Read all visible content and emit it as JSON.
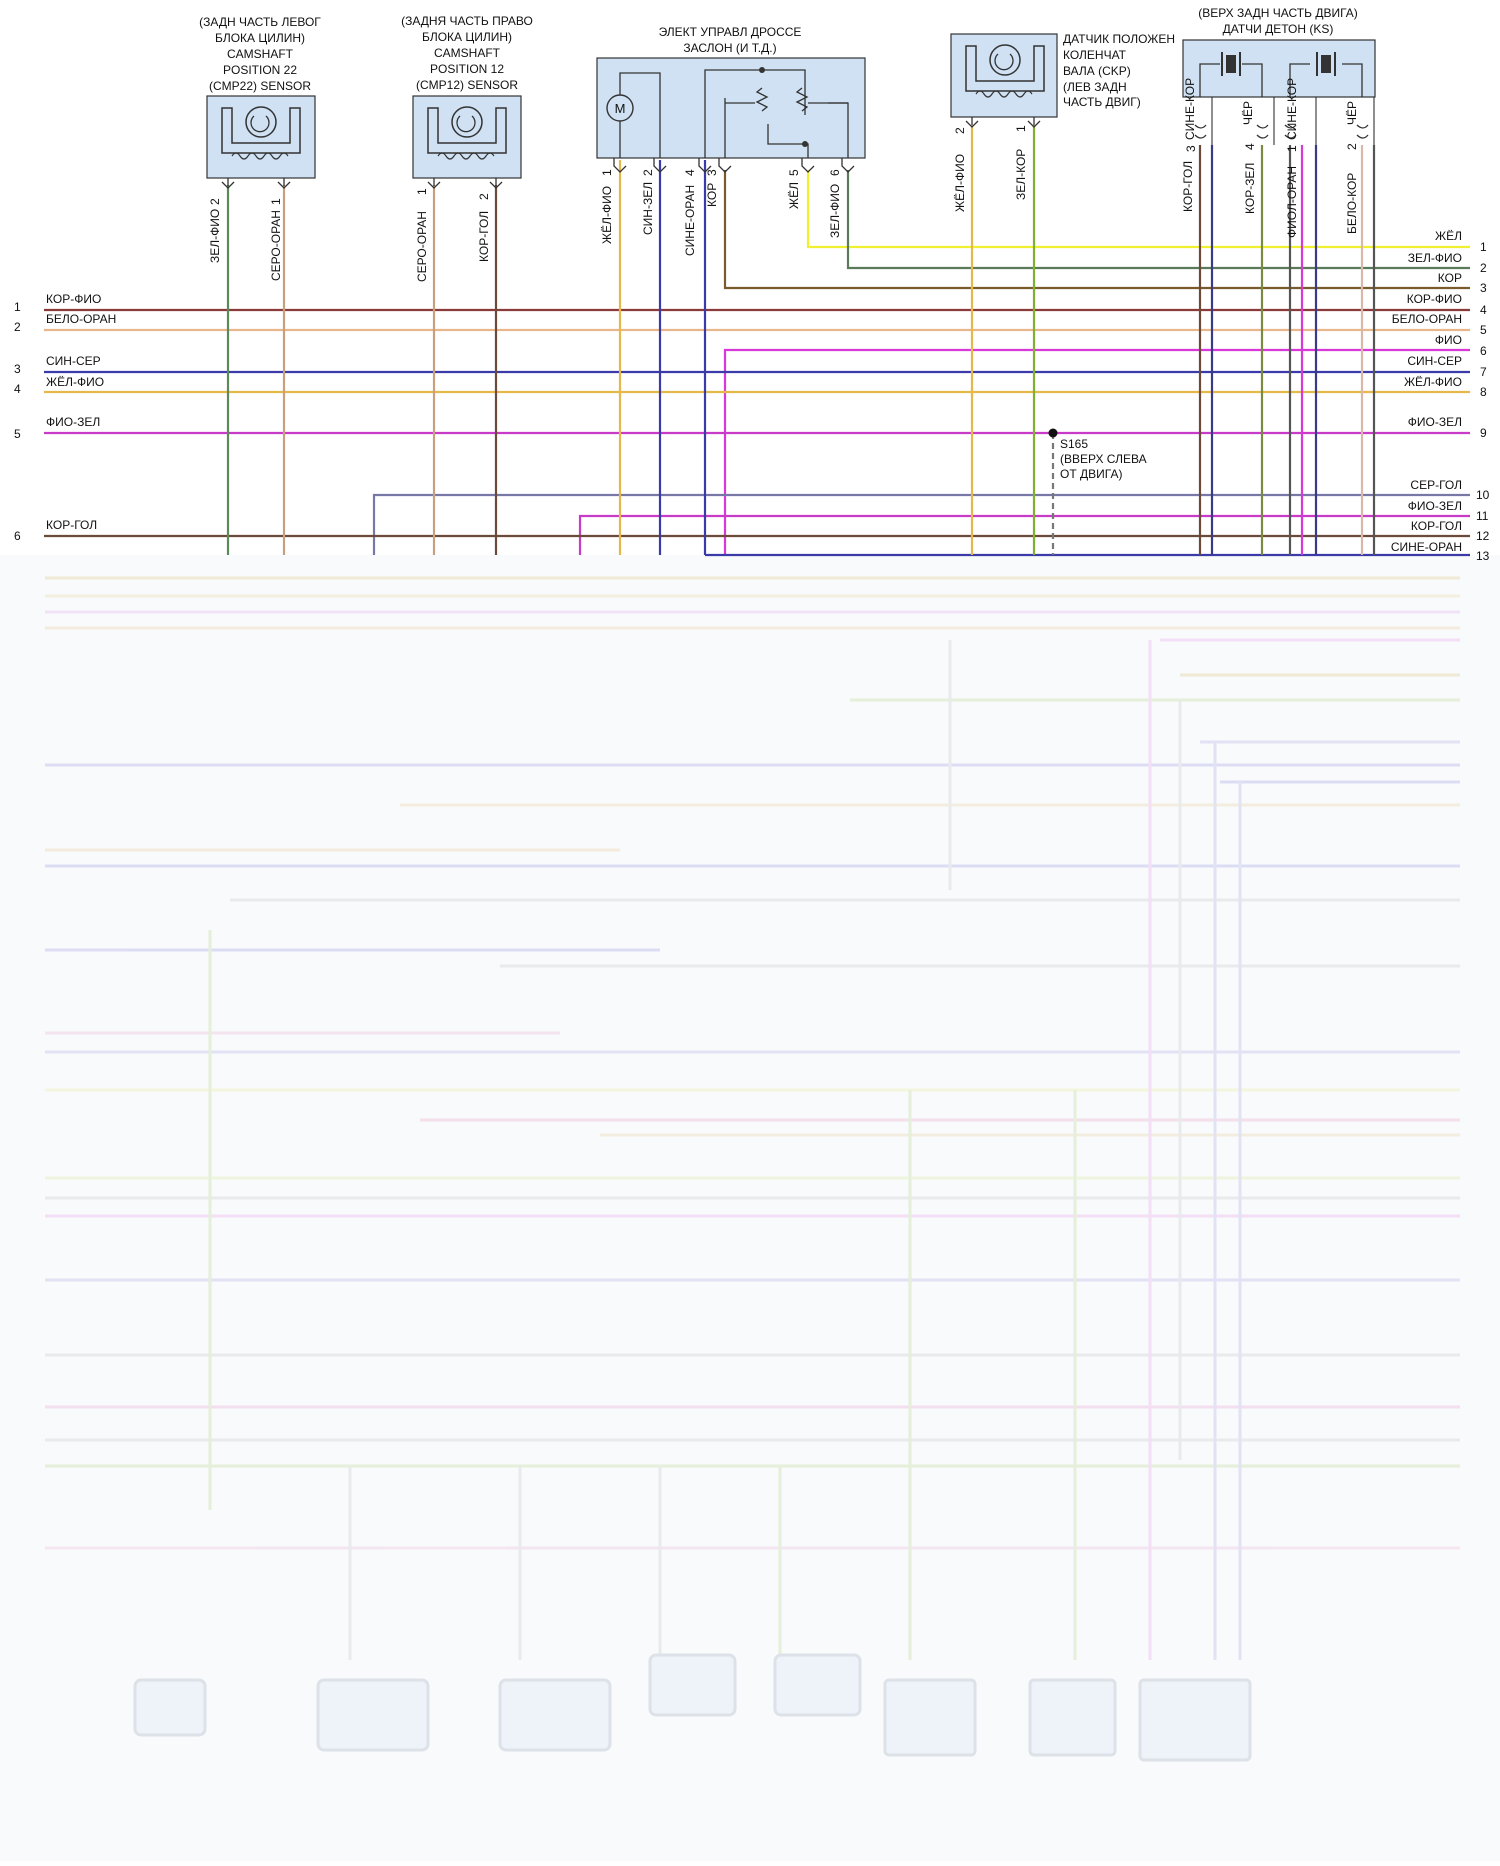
{
  "components": {
    "cmp22": {
      "lines": [
        "(ЗАДН ЧАСТЬ ЛЕВОГ",
        "БЛОКА ЦИЛИН)",
        "CAMSHAFT",
        "POSITION 22",
        "(CMP22) SENSOR"
      ],
      "pins": [
        "2",
        "1"
      ],
      "wires": [
        "ЗЕЛ-ФИО",
        "СЕРО-ОРАН"
      ]
    },
    "cmp12": {
      "lines": [
        "(ЗАДНЯ ЧАСТЬ ПРАВО",
        "БЛОКА ЦИЛИН)",
        "CAMSHAFT",
        "POSITION 12",
        "(CMP12) SENSOR"
      ],
      "pins": [
        "1",
        "2"
      ],
      "wires": [
        "СЕРО-ОРАН",
        "КОР-ГОЛ"
      ]
    },
    "throttle": {
      "lines": [
        "ЭЛЕКТ УПРАВЛ ДРОССЕ",
        "ЗАСЛОН (И Т.Д.)"
      ],
      "pins": [
        "1",
        "2",
        "4",
        "3",
        "5",
        "6"
      ],
      "wires": [
        "ЖЁЛ-ФИО",
        "СИН-ЗЕЛ",
        "СИНЕ-ОРАН",
        "КОР",
        "ЖЁЛ",
        "ЗЕЛ-ФИО"
      ],
      "motor_symbol": "M"
    },
    "ckp": {
      "lines": [
        "ДАТЧИК ПОЛОЖЕН",
        "КОЛЕНЧАТ",
        "ВАЛА (CKP)",
        "(ЛЕВ ЗАДН",
        "ЧАСТЬ ДВИГ)"
      ],
      "pins": [
        "2",
        "1"
      ],
      "wires": [
        "ЖЁЛ-ФИО",
        "ЗЕЛ-КОР"
      ]
    },
    "ks": {
      "lines": [
        "(ВЕРХ ЗАДН ЧАСТЬ ДВИГА)",
        "ДАТЧИ ДЕТОН (KS)"
      ],
      "pins": [
        "3",
        "4",
        "1",
        "2"
      ],
      "wires": [
        "КОР-ГОЛ",
        "СИНЕ-КОР",
        "КОР-ЗЕЛ",
        "ЧЁР",
        "ФИОЛ-ОРАН",
        "СИНЕ-КОР",
        "БЕЛО-КОР",
        "ЧЁР"
      ]
    }
  },
  "splice": {
    "id": "S165",
    "lines": [
      "(ВВЕРХ СЛЕВА",
      "ОТ ДВИГА)"
    ]
  },
  "left_rows": [
    {
      "num": "1",
      "label": "КОР-ФИО",
      "color": "#8b3a3a"
    },
    {
      "num": "2",
      "label": "БЕЛО-ОРАН",
      "color": "#e8b68a"
    },
    {
      "num": "3",
      "label": "СИН-СЕР",
      "color": "#3a3aa8"
    },
    {
      "num": "4",
      "label": "ЖЁЛ-ФИО",
      "color": "#e6b84a"
    },
    {
      "num": "5",
      "label": "ФИО-ЗЕЛ",
      "color": "#c83ac8"
    },
    {
      "num": "6",
      "label": "КОР-ГОЛ",
      "color": "#6b4a3a"
    }
  ],
  "right_rows": [
    {
      "num": "1",
      "label": "ЖЁЛ",
      "color": "#f0f030"
    },
    {
      "num": "2",
      "label": "ЗЕЛ-ФИО",
      "color": "#5a7a5a"
    },
    {
      "num": "3",
      "label": "КОР",
      "color": "#7a5a2a"
    },
    {
      "num": "4",
      "label": "КОР-ФИО",
      "color": "#8b3a3a"
    },
    {
      "num": "5",
      "label": "БЕЛО-ОРАН",
      "color": "#e8b68a"
    },
    {
      "num": "6",
      "label": "ФИО",
      "color": "#d838d8"
    },
    {
      "num": "7",
      "label": "СИН-СЕР",
      "color": "#3a3aa8"
    },
    {
      "num": "8",
      "label": "ЖЁЛ-ФИО",
      "color": "#e6b84a"
    },
    {
      "num": "9",
      "label": "ФИО-ЗЕЛ",
      "color": "#c83ac8"
    },
    {
      "num": "10",
      "label": "СЕР-ГОЛ",
      "color": "#7878a8"
    },
    {
      "num": "11",
      "label": "ФИО-ЗЕЛ",
      "color": "#c83ac8"
    },
    {
      "num": "12",
      "label": "КОР-ГОЛ",
      "color": "#6b4a3a"
    },
    {
      "num": "13",
      "label": "СИНЕ-ОРАН",
      "color": "#3a3aa8"
    }
  ]
}
